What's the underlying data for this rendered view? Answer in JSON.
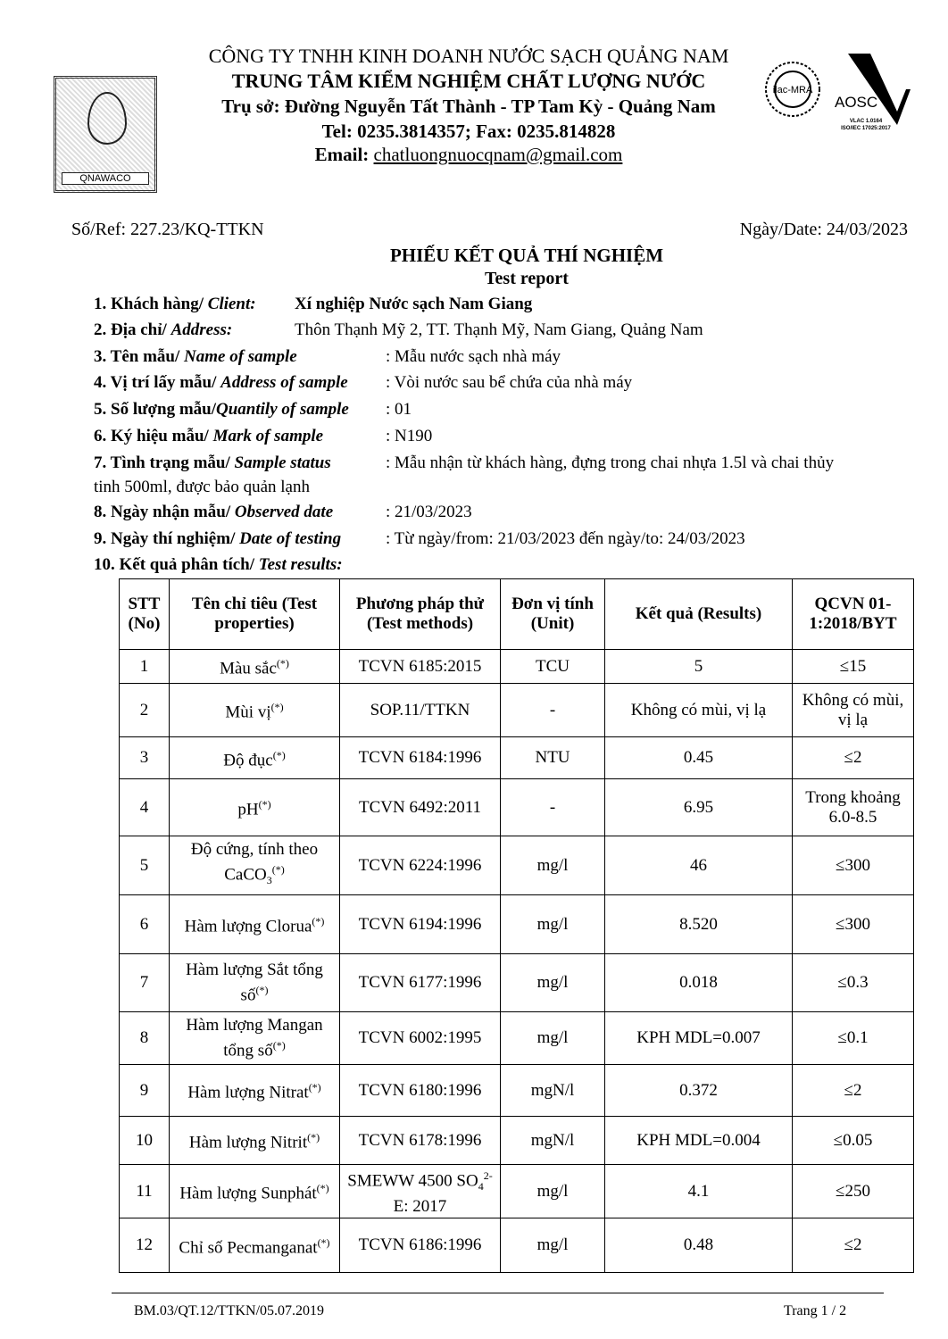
{
  "header": {
    "company": "CÔNG TY TNHH KINH DOANH NƯỚC SẠCH QUẢNG NAM",
    "center": "TRUNG TÂM KIỂM NGHIỆM CHẤT LƯỢNG NƯỚC",
    "address": "Trụ sở: Đường Nguyễn Tất Thành - TP Tam Kỳ -  Quảng Nam",
    "phone": "Tel: 0235.3814357; Fax: 0235.814828",
    "email_label": "Email:",
    "email": "chatluongnuocqnam@gmail.com",
    "logo_text": "QNAWACO",
    "accreditation": {
      "ilac": "ilac-MRA",
      "aosc": "AOSC",
      "vilas": "VLAC 1.0164",
      "iso": "ISO/IEC 17025:2017"
    }
  },
  "ref": "Số/Ref: 227.23/KQ-TTKN",
  "date": "Ngày/Date: 24/03/2023",
  "title": "PHIẾU KẾT QUẢ THÍ NGHIỆM",
  "subtitle": "Test report",
  "info": [
    {
      "label": "1. Khách hàng/ ",
      "label_en": "Client:",
      "value": "Xí nghiệp Nước sạch Nam Giang"
    },
    {
      "label": "2. Địa chỉ/ ",
      "label_en": "Address:",
      "value": "Thôn Thạnh Mỹ 2, TT. Thạnh Mỹ, Nam Giang, Quảng Nam"
    },
    {
      "label": "3. Tên mẫu/ ",
      "label_en": "Name of sample",
      "value": ": Mẫu nước sạch nhà máy"
    },
    {
      "label": "4. Vị trí lấy mẫu/ ",
      "label_en": "Address of sample",
      "value": ": Vòi nước sau bể chứa của nhà máy"
    },
    {
      "label": "5. Số lượng mẫu/",
      "label_en": "Quantily of sample",
      "value": ": 01"
    },
    {
      "label": "6. Ký hiệu mẫu/ ",
      "label_en": "Mark of sample",
      "value": ": N190"
    },
    {
      "label": "7. Tình trạng mẫu/ ",
      "label_en": "Sample status",
      "value": ": Mẫu nhận từ khách hàng, đựng trong chai nhựa 1.5l và chai thủy",
      "cont": "tinh 500ml, được bảo quản lạnh"
    },
    {
      "label": "8. Ngày nhận mẫu/ ",
      "label_en": "Observed date",
      "value": ": 21/03/2023"
    },
    {
      "label": "9. Ngày thí nghiệm/ ",
      "label_en": "Date of testing",
      "value": ": Từ ngày/from: 21/03/2023  đến ngày/to: 24/03/2023"
    },
    {
      "label": "10. Kết quả phân tích/ ",
      "label_en": "Test results:",
      "value": ""
    }
  ],
  "table": {
    "headers": [
      "STT (No)",
      "Tên chỉ tiêu (Test properties)",
      "Phương pháp thử (Test methods)",
      "Đơn vị tính (Unit)",
      "Kết quả (Results)",
      "QCVN 01-1:2018/BYT"
    ],
    "rows": [
      {
        "no": "1",
        "name": "Màu sắc",
        "sup": "(*)",
        "method": "TCVN 6185:2015",
        "unit": "TCU",
        "result": "5",
        "limit": "≤15"
      },
      {
        "no": "2",
        "name": "Mùi vị",
        "sup": "(*)",
        "method": "SOP.11/TTKN",
        "unit": "-",
        "result": "Không có mùi, vị lạ",
        "limit": "Không có mùi, vị lạ"
      },
      {
        "no": "3",
        "name": "Độ đục",
        "sup": "(*)",
        "method": "TCVN 6184:1996",
        "unit": "NTU",
        "result": "0.45",
        "limit": "≤2"
      },
      {
        "no": "4",
        "name": "pH",
        "sup": "(*)",
        "method": "TCVN 6492:2011",
        "unit": "-",
        "result": "6.95",
        "limit": "Trong khoảng 6.0-8.5"
      },
      {
        "no": "5",
        "name": "Độ cứng, tính theo CaCO",
        "sub": "3",
        "sup": "(*)",
        "method": "TCVN 6224:1996",
        "unit": "mg/l",
        "result": "46",
        "limit": "≤300"
      },
      {
        "no": "6",
        "name": "Hàm lượng Clorua",
        "sup": "(*)",
        "method": "TCVN 6194:1996",
        "unit": "mg/l",
        "result": "8.520",
        "limit": "≤300"
      },
      {
        "no": "7",
        "name": "Hàm lượng Sắt tổng số",
        "sup": "(*)",
        "method": "TCVN 6177:1996",
        "unit": "mg/l",
        "result": "0.018",
        "limit": "≤0.3"
      },
      {
        "no": "8",
        "name": "Hàm lượng Mangan tổng số",
        "sup": "(*)",
        "method": "TCVN 6002:1995",
        "unit": "mg/l",
        "result": "KPH MDL=0.007",
        "limit": "≤0.1"
      },
      {
        "no": "9",
        "name": "Hàm lượng Nitrat",
        "sup": "(*)",
        "method": "TCVN 6180:1996",
        "unit": "mgN/l",
        "result": "0.372",
        "limit": "≤2"
      },
      {
        "no": "10",
        "name": "Hàm lượng Nitrit",
        "sup": "(*)",
        "method": "TCVN 6178:1996",
        "unit": "mgN/l",
        "result": "KPH MDL=0.004",
        "limit": "≤0.05"
      },
      {
        "no": "11",
        "name": "Hàm lượng Sunphát",
        "sup": "(*)",
        "method": "SMEWW 4500 SO",
        "method_sub": "4",
        "method_sup": "2-",
        "method_tail": "E: 2017",
        "unit": "mg/l",
        "result": "4.1",
        "limit": "≤250"
      },
      {
        "no": "12",
        "name": "Chỉ số Pecmanganat",
        "sup": "(*)",
        "method": "TCVN 6186:1996",
        "unit": "mg/l",
        "result": "0.48",
        "limit": "≤2"
      }
    ]
  },
  "footer": {
    "form": "BM.03/QT.12/TTKN/05.07.2019",
    "page": "Trang 1 / 2"
  }
}
